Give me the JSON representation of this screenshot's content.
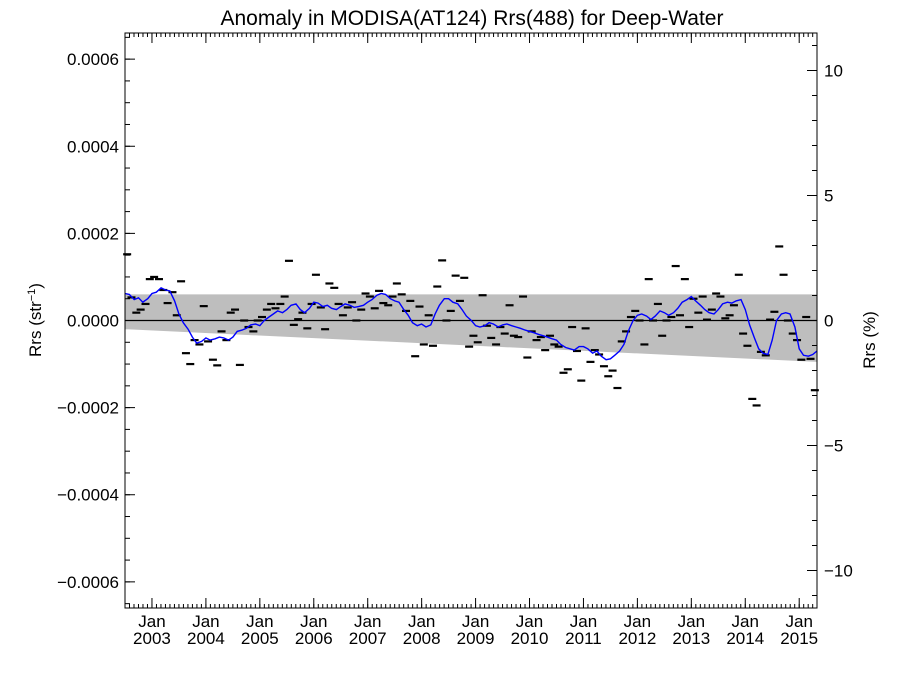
{
  "chart_data": {
    "type": "scatter",
    "title": "Anomaly in MODISA(AT124) Rrs(488) for Deep-Water",
    "ylabel_left_base": "Rrs (str",
    "ylabel_left_sup": "−1",
    "ylabel_left_end": ")",
    "ylabel_right": "Rrs (%)",
    "xlim": [
      2002.5,
      2015.33
    ],
    "ylim": [
      -0.00066,
      0.00066
    ],
    "ylim_right": [
      -11.5,
      11.5
    ],
    "grid": false,
    "y_ticks": [
      {
        "value": 0.0006,
        "label": "0.0006"
      },
      {
        "value": 0.0004,
        "label": "0.0004"
      },
      {
        "value": 0.0002,
        "label": "0.0002"
      },
      {
        "value": 0.0,
        "label": "0.0000"
      },
      {
        "value": -0.0002,
        "label": "−0.0002"
      },
      {
        "value": -0.0004,
        "label": "−0.0004"
      },
      {
        "value": -0.0006,
        "label": "−0.0006"
      }
    ],
    "y_ticks_right": [
      {
        "value": 10,
        "label": "10"
      },
      {
        "value": 5,
        "label": "5"
      },
      {
        "value": 0,
        "label": "0"
      },
      {
        "value": -5,
        "label": "−5"
      },
      {
        "value": -10,
        "label": "−10"
      }
    ],
    "x_ticks": [
      {
        "value": 2003,
        "month": "Jan",
        "year": "2003"
      },
      {
        "value": 2004,
        "month": "Jan",
        "year": "2004"
      },
      {
        "value": 2005,
        "month": "Jan",
        "year": "2005"
      },
      {
        "value": 2006,
        "month": "Jan",
        "year": "2006"
      },
      {
        "value": 2007,
        "month": "Jan",
        "year": "2007"
      },
      {
        "value": 2008,
        "month": "Jan",
        "year": "2008"
      },
      {
        "value": 2009,
        "month": "Jan",
        "year": "2009"
      },
      {
        "value": 2010,
        "month": "Jan",
        "year": "2010"
      },
      {
        "value": 2011,
        "month": "Jan",
        "year": "2011"
      },
      {
        "value": 2012,
        "month": "Jan",
        "year": "2012"
      },
      {
        "value": 2013,
        "month": "Jan",
        "year": "2013"
      },
      {
        "value": 2014,
        "month": "Jan",
        "year": "2014"
      },
      {
        "value": 2015,
        "month": "Jan",
        "year": "2015"
      }
    ],
    "band": {
      "x": [
        2002.5,
        2015.33
      ],
      "upper": [
        6e-05,
        6e-05
      ],
      "lower": [
        -2e-05,
        -9.5e-05
      ]
    },
    "zero_line": 0.0,
    "points": [
      [
        2002.54,
        0.000152
      ],
      [
        2002.62,
        5.3e-05
      ],
      [
        2002.71,
        1.8e-05
      ],
      [
        2002.79,
        2.5e-05
      ],
      [
        2002.88,
        3.8e-05
      ],
      [
        2002.96,
        9.5e-05
      ],
      [
        2003.04,
        0.0001
      ],
      [
        2003.13,
        9.5e-05
      ],
      [
        2003.21,
        7e-05
      ],
      [
        2003.29,
        4e-05
      ],
      [
        2003.38,
        6.5e-05
      ],
      [
        2003.46,
        1.2e-05
      ],
      [
        2003.54,
        9e-05
      ],
      [
        2003.63,
        -7.5e-05
      ],
      [
        2003.71,
        -0.0001
      ],
      [
        2003.79,
        -4.5e-05
      ],
      [
        2003.88,
        -5.5e-05
      ],
      [
        2003.96,
        3.3e-05
      ],
      [
        2004.04,
        -4.8e-05
      ],
      [
        2004.13,
        -9e-05
      ],
      [
        2004.21,
        -0.000103
      ],
      [
        2004.29,
        -2.5e-05
      ],
      [
        2004.38,
        -4.5e-05
      ],
      [
        2004.46,
        1.8e-05
      ],
      [
        2004.54,
        2.5e-05
      ],
      [
        2004.63,
        -0.000102
      ],
      [
        2004.71,
        0.0
      ],
      [
        2004.79,
        -1.5e-05
      ],
      [
        2004.88,
        -2.5e-05
      ],
      [
        2004.96,
        0.0
      ],
      [
        2005.04,
        8e-06
      ],
      [
        2005.13,
        2.5e-05
      ],
      [
        2005.21,
        3.8e-05
      ],
      [
        2005.29,
        2.8e-05
      ],
      [
        2005.38,
        3.8e-05
      ],
      [
        2005.46,
        5.5e-05
      ],
      [
        2005.54,
        0.000137
      ],
      [
        2005.63,
        -1e-05
      ],
      [
        2005.71,
        3e-06
      ],
      [
        2005.79,
        1.8e-05
      ],
      [
        2005.88,
        -1.8e-05
      ],
      [
        2005.96,
        3.8e-05
      ],
      [
        2006.04,
        0.000105
      ],
      [
        2006.13,
        3e-05
      ],
      [
        2006.21,
        -2e-05
      ],
      [
        2006.29,
        8.5e-05
      ],
      [
        2006.38,
        7.5e-05
      ],
      [
        2006.46,
        3.8e-05
      ],
      [
        2006.54,
        1.2e-05
      ],
      [
        2006.63,
        3e-05
      ],
      [
        2006.71,
        4.2e-05
      ],
      [
        2006.79,
        0.0
      ],
      [
        2006.88,
        2.5e-05
      ],
      [
        2006.96,
        6.2e-05
      ],
      [
        2007.04,
        5.5e-05
      ],
      [
        2007.13,
        2.8e-05
      ],
      [
        2007.21,
        6.8e-05
      ],
      [
        2007.29,
        4e-05
      ],
      [
        2007.38,
        3.5e-05
      ],
      [
        2007.46,
        5.5e-05
      ],
      [
        2007.54,
        8.5e-05
      ],
      [
        2007.63,
        6e-05
      ],
      [
        2007.71,
        2.2e-05
      ],
      [
        2007.79,
        4.5e-05
      ],
      [
        2007.88,
        -8.2e-05
      ],
      [
        2007.96,
        3.2e-05
      ],
      [
        2008.04,
        -5.5e-05
      ],
      [
        2008.13,
        1.2e-05
      ],
      [
        2008.21,
        -5.8e-05
      ],
      [
        2008.29,
        7.8e-05
      ],
      [
        2008.38,
        0.000138
      ],
      [
        2008.46,
        0.0
      ],
      [
        2008.54,
        2.2e-05
      ],
      [
        2008.63,
        0.000103
      ],
      [
        2008.71,
        4.5e-05
      ],
      [
        2008.79,
        9.8e-05
      ],
      [
        2008.88,
        -6e-05
      ],
      [
        2008.96,
        -3.5e-05
      ],
      [
        2009.04,
        -5e-05
      ],
      [
        2009.13,
        5.8e-05
      ],
      [
        2009.21,
        -1.2e-05
      ],
      [
        2009.29,
        -4e-05
      ],
      [
        2009.38,
        -5.5e-05
      ],
      [
        2009.46,
        -1.5e-05
      ],
      [
        2009.54,
        -3e-05
      ],
      [
        2009.63,
        3.5e-05
      ],
      [
        2009.71,
        -3.5e-05
      ],
      [
        2009.79,
        -3.8e-05
      ],
      [
        2009.88,
        5.5e-05
      ],
      [
        2009.96,
        -8.5e-05
      ],
      [
        2010.04,
        -2.5e-05
      ],
      [
        2010.13,
        -4.5e-05
      ],
      [
        2010.21,
        -3.8e-05
      ],
      [
        2010.29,
        -6.8e-05
      ],
      [
        2010.38,
        -3.5e-05
      ],
      [
        2010.46,
        -5.5e-05
      ],
      [
        2010.54,
        -6e-05
      ],
      [
        2010.63,
        -0.00012
      ],
      [
        2010.71,
        -0.000112
      ],
      [
        2010.79,
        -1.5e-05
      ],
      [
        2010.88,
        -7e-05
      ],
      [
        2010.96,
        -0.000138
      ],
      [
        2011.04,
        -1.8e-05
      ],
      [
        2011.13,
        -9.5e-05
      ],
      [
        2011.21,
        -6.8e-05
      ],
      [
        2011.29,
        -7.8e-05
      ],
      [
        2011.38,
        -0.000105
      ],
      [
        2011.46,
        -0.000128
      ],
      [
        2011.54,
        -0.000115
      ],
      [
        2011.63,
        -0.000155
      ],
      [
        2011.71,
        -4.8e-05
      ],
      [
        2011.79,
        -2.5e-05
      ],
      [
        2011.88,
        8e-06
      ],
      [
        2011.96,
        2.2e-05
      ],
      [
        2012.04,
        0.0
      ],
      [
        2012.13,
        -5.5e-05
      ],
      [
        2012.21,
        9.5e-05
      ],
      [
        2012.29,
        0.0
      ],
      [
        2012.38,
        3.8e-05
      ],
      [
        2012.46,
        -3.5e-05
      ],
      [
        2012.54,
        0.0
      ],
      [
        2012.63,
        8e-06
      ],
      [
        2012.71,
        0.000125
      ],
      [
        2012.79,
        1.2e-05
      ],
      [
        2012.88,
        9.5e-05
      ],
      [
        2012.96,
        -1.5e-05
      ],
      [
        2013.04,
        5e-05
      ],
      [
        2013.13,
        1.8e-05
      ],
      [
        2013.21,
        5.5e-05
      ],
      [
        2013.29,
        2e-06
      ],
      [
        2013.38,
        2.5e-05
      ],
      [
        2013.46,
        6.2e-05
      ],
      [
        2013.54,
        5.5e-05
      ],
      [
        2013.63,
        5e-06
      ],
      [
        2013.71,
        1.2e-05
      ],
      [
        2013.79,
        3.5e-05
      ],
      [
        2013.88,
        0.000105
      ],
      [
        2013.96,
        -3e-05
      ],
      [
        2014.04,
        -5.8e-05
      ],
      [
        2014.13,
        -0.00018
      ],
      [
        2014.21,
        -0.000195
      ],
      [
        2014.29,
        -7.2e-05
      ],
      [
        2014.38,
        -8e-05
      ],
      [
        2014.46,
        2e-06
      ],
      [
        2014.54,
        2e-05
      ],
      [
        2014.63,
        0.00017
      ],
      [
        2014.71,
        0.000105
      ],
      [
        2014.79,
        0.0
      ],
      [
        2014.88,
        -3e-05
      ],
      [
        2014.96,
        -4.5e-05
      ],
      [
        2015.04,
        -9e-05
      ],
      [
        2015.13,
        8e-06
      ],
      [
        2015.21,
        -8.8e-05
      ],
      [
        2015.29,
        -0.00016
      ]
    ],
    "smooth": [
      [
        2002.5,
        6.2e-05
      ],
      [
        2002.58,
        6e-05
      ],
      [
        2002.67,
        4.8e-05
      ],
      [
        2002.75,
        5.2e-05
      ],
      [
        2002.83,
        4.2e-05
      ],
      [
        2002.92,
        5e-05
      ],
      [
        2003.0,
        6.2e-05
      ],
      [
        2003.08,
        6.5e-05
      ],
      [
        2003.17,
        7.5e-05
      ],
      [
        2003.25,
        7e-05
      ],
      [
        2003.33,
        6.8e-05
      ],
      [
        2003.42,
        4.5e-05
      ],
      [
        2003.5,
        1.5e-05
      ],
      [
        2003.58,
        -5e-06
      ],
      [
        2003.67,
        -2e-05
      ],
      [
        2003.75,
        -3.8e-05
      ],
      [
        2003.83,
        -5.2e-05
      ],
      [
        2003.92,
        -4.8e-05
      ],
      [
        2004.0,
        -4e-05
      ],
      [
        2004.08,
        -4.5e-05
      ],
      [
        2004.17,
        -4.2e-05
      ],
      [
        2004.25,
        -3.8e-05
      ],
      [
        2004.33,
        -4e-05
      ],
      [
        2004.42,
        -4.5e-05
      ],
      [
        2004.5,
        -3.8e-05
      ],
      [
        2004.58,
        -2.5e-05
      ],
      [
        2004.67,
        -2.2e-05
      ],
      [
        2004.75,
        -1.8e-05
      ],
      [
        2004.83,
        -1e-05
      ],
      [
        2004.92,
        -8e-06
      ],
      [
        2005.0,
        -1.2e-05
      ],
      [
        2005.08,
        0.0
      ],
      [
        2005.17,
        8e-06
      ],
      [
        2005.25,
        1.5e-05
      ],
      [
        2005.33,
        2.2e-05
      ],
      [
        2005.42,
        1.8e-05
      ],
      [
        2005.5,
        2.5e-05
      ],
      [
        2005.58,
        3.5e-05
      ],
      [
        2005.67,
        3.8e-05
      ],
      [
        2005.75,
        2.5e-05
      ],
      [
        2005.83,
        1.8e-05
      ],
      [
        2005.92,
        2.8e-05
      ],
      [
        2006.0,
        4.2e-05
      ],
      [
        2006.08,
        4e-05
      ],
      [
        2006.17,
        3.2e-05
      ],
      [
        2006.25,
        3.5e-05
      ],
      [
        2006.33,
        2.8e-05
      ],
      [
        2006.42,
        2.5e-05
      ],
      [
        2006.5,
        3.2e-05
      ],
      [
        2006.58,
        3.8e-05
      ],
      [
        2006.67,
        3.5e-05
      ],
      [
        2006.75,
        3e-05
      ],
      [
        2006.83,
        3.2e-05
      ],
      [
        2006.92,
        3.5e-05
      ],
      [
        2007.0,
        4.2e-05
      ],
      [
        2007.08,
        4.8e-05
      ],
      [
        2007.17,
        5.8e-05
      ],
      [
        2007.25,
        6.2e-05
      ],
      [
        2007.33,
        6e-05
      ],
      [
        2007.42,
        5e-05
      ],
      [
        2007.5,
        4.5e-05
      ],
      [
        2007.58,
        4.2e-05
      ],
      [
        2007.67,
        2.5e-05
      ],
      [
        2007.75,
        1.2e-05
      ],
      [
        2007.83,
        -5e-06
      ],
      [
        2007.92,
        -1.2e-05
      ],
      [
        2008.0,
        -8e-06
      ],
      [
        2008.08,
        -1.5e-05
      ],
      [
        2008.17,
        -1e-05
      ],
      [
        2008.25,
        1.5e-05
      ],
      [
        2008.33,
        3.5e-05
      ],
      [
        2008.42,
        5e-05
      ],
      [
        2008.5,
        5e-05
      ],
      [
        2008.58,
        4.2e-05
      ],
      [
        2008.67,
        3.8e-05
      ],
      [
        2008.75,
        2.5e-05
      ],
      [
        2008.83,
        1e-05
      ],
      [
        2008.92,
        0.0
      ],
      [
        2009.0,
        -1.2e-05
      ],
      [
        2009.08,
        -1.5e-05
      ],
      [
        2009.17,
        -1.2e-05
      ],
      [
        2009.25,
        -5e-06
      ],
      [
        2009.33,
        -8e-06
      ],
      [
        2009.42,
        -1.5e-05
      ],
      [
        2009.5,
        -1e-05
      ],
      [
        2009.58,
        -8e-06
      ],
      [
        2009.67,
        -1.2e-05
      ],
      [
        2009.75,
        -1.5e-05
      ],
      [
        2009.83,
        -1.8e-05
      ],
      [
        2009.92,
        -2.2e-05
      ],
      [
        2010.0,
        -2.5e-05
      ],
      [
        2010.08,
        -2.8e-05
      ],
      [
        2010.17,
        -3.2e-05
      ],
      [
        2010.25,
        -3.5e-05
      ],
      [
        2010.33,
        -3.8e-05
      ],
      [
        2010.42,
        -4.2e-05
      ],
      [
        2010.5,
        -4.5e-05
      ],
      [
        2010.58,
        -5.5e-05
      ],
      [
        2010.67,
        -6.2e-05
      ],
      [
        2010.75,
        -6.5e-05
      ],
      [
        2010.83,
        -6.8e-05
      ],
      [
        2010.92,
        -6e-05
      ],
      [
        2011.0,
        -6e-05
      ],
      [
        2011.08,
        -6.5e-05
      ],
      [
        2011.17,
        -7.5e-05
      ],
      [
        2011.25,
        -7e-05
      ],
      [
        2011.33,
        -8.2e-05
      ],
      [
        2011.42,
        -9e-05
      ],
      [
        2011.5,
        -8.8e-05
      ],
      [
        2011.58,
        -8e-05
      ],
      [
        2011.67,
        -7e-05
      ],
      [
        2011.75,
        -5.5e-05
      ],
      [
        2011.83,
        -2.5e-05
      ],
      [
        2011.92,
        0.0
      ],
      [
        2012.0,
        1.2e-05
      ],
      [
        2012.08,
        1.5e-05
      ],
      [
        2012.17,
        1e-05
      ],
      [
        2012.25,
        2e-06
      ],
      [
        2012.33,
        1e-05
      ],
      [
        2012.42,
        2.2e-05
      ],
      [
        2012.5,
        1.8e-05
      ],
      [
        2012.58,
        1.2e-05
      ],
      [
        2012.67,
        1.8e-05
      ],
      [
        2012.75,
        2.8e-05
      ],
      [
        2012.83,
        4.2e-05
      ],
      [
        2012.92,
        4.8e-05
      ],
      [
        2013.0,
        5.5e-05
      ],
      [
        2013.08,
        4.5e-05
      ],
      [
        2013.17,
        3.5e-05
      ],
      [
        2013.25,
        2.5e-05
      ],
      [
        2013.33,
        1.8e-05
      ],
      [
        2013.42,
        1.5e-05
      ],
      [
        2013.5,
        2.5e-05
      ],
      [
        2013.58,
        3.8e-05
      ],
      [
        2013.67,
        4.2e-05
      ],
      [
        2013.75,
        4e-05
      ],
      [
        2013.83,
        4.5e-05
      ],
      [
        2013.92,
        4.8e-05
      ],
      [
        2014.0,
        2.5e-05
      ],
      [
        2014.08,
        -1e-05
      ],
      [
        2014.17,
        -4e-05
      ],
      [
        2014.25,
        -6.5e-05
      ],
      [
        2014.33,
        -7.5e-05
      ],
      [
        2014.42,
        -7.8e-05
      ],
      [
        2014.5,
        -4.5e-05
      ],
      [
        2014.58,
        0.0
      ],
      [
        2014.67,
        1.5e-05
      ],
      [
        2014.75,
        1.8e-05
      ],
      [
        2014.83,
        1.5e-05
      ],
      [
        2014.92,
        -1.5e-05
      ],
      [
        2015.0,
        -6.5e-05
      ],
      [
        2015.08,
        -8e-05
      ],
      [
        2015.17,
        -8.2e-05
      ],
      [
        2015.25,
        -7.8e-05
      ],
      [
        2015.33,
        -7e-05
      ]
    ],
    "colors": {
      "band": "#bebebe",
      "smooth": "#0000ff",
      "points": "#000000",
      "axis": "#000000"
    }
  }
}
